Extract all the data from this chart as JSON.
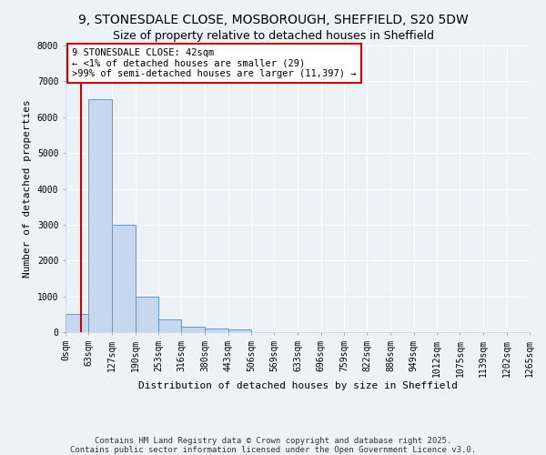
{
  "title_line1": "9, STONESDALE CLOSE, MOSBOROUGH, SHEFFIELD, S20 5DW",
  "title_line2": "Size of property relative to detached houses in Sheffield",
  "xlabel": "Distribution of detached houses by size in Sheffield",
  "ylabel": "Number of detached properties",
  "annotation_text": "9 STONESDALE CLOSE: 42sqm\n← <1% of detached houses are smaller (29)\n>99% of semi-detached houses are larger (11,397) →",
  "footnote1": "Contains HM Land Registry data © Crown copyright and database right 2025.",
  "footnote2": "Contains public sector information licensed under the Open Government Licence v3.0.",
  "bin_edges": [
    0,
    63,
    127,
    190,
    253,
    316,
    380,
    443,
    506,
    569,
    633,
    696,
    759,
    822,
    886,
    949,
    1012,
    1075,
    1139,
    1202,
    1265
  ],
  "bar_heights": [
    500,
    6500,
    3000,
    1000,
    350,
    150,
    100,
    70,
    0,
    0,
    0,
    0,
    0,
    0,
    0,
    0,
    0,
    0,
    0,
    0
  ],
  "bar_color": "#c5d8f0",
  "bar_edge_color": "#5b9bd5",
  "red_line_x": 42,
  "ylim": [
    0,
    8000
  ],
  "xlim": [
    0,
    1265
  ],
  "background_color": "#edf2f9",
  "annotation_box_color": "#ffffff",
  "annotation_box_edge": "#cc0000",
  "tick_labels": [
    "0sqm",
    "63sqm",
    "127sqm",
    "190sqm",
    "253sqm",
    "316sqm",
    "380sqm",
    "443sqm",
    "506sqm",
    "569sqm",
    "633sqm",
    "696sqm",
    "759sqm",
    "822sqm",
    "886sqm",
    "949sqm",
    "1012sqm",
    "1075sqm",
    "1139sqm",
    "1202sqm",
    "1265sqm"
  ],
  "yticks": [
    0,
    1000,
    2000,
    3000,
    4000,
    5000,
    6000,
    7000,
    8000
  ],
  "grid_color": "#ffffff",
  "title_fontsize": 10,
  "subtitle_fontsize": 9,
  "axis_label_fontsize": 8,
  "tick_fontsize": 7,
  "annotation_fontsize": 7.5,
  "footnote_fontsize": 6.5
}
